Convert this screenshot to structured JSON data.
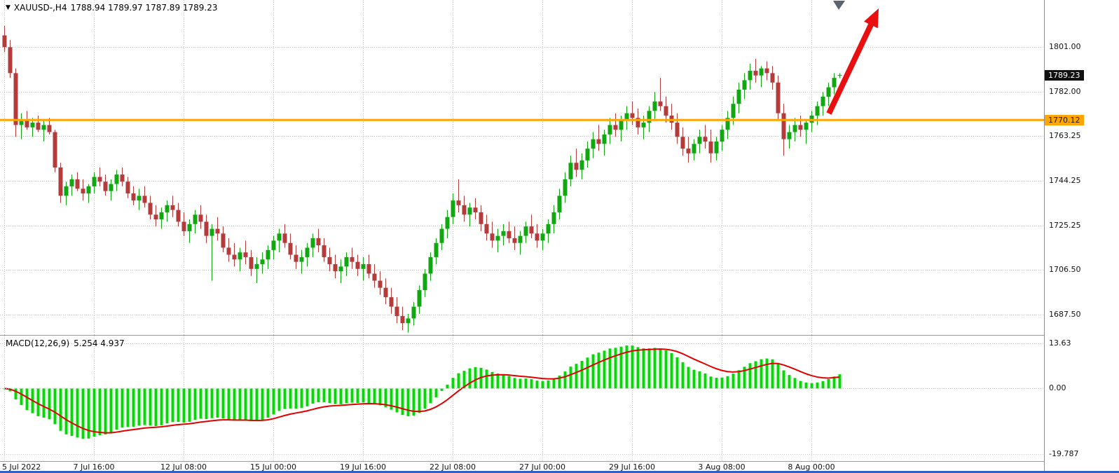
{
  "header": {
    "symbol_period": "XAUUSD-,H4",
    "ohlc": "1788.94 1789.97 1787.89 1789.23"
  },
  "macd_header": {
    "name": "MACD(12,26,9)",
    "values": "5.254 4.937"
  },
  "colors": {
    "background": "#ffffff",
    "grid": "#c6c6c6",
    "candle_up": "#12a712",
    "candle_down": "#b23b3b",
    "macd_hist": "#00dc00",
    "macd_signal": "#e00000",
    "hline": "#FFA500",
    "last_price_bg": "#111111",
    "arrow": "#e81010",
    "bottom_edge": "#2e62c8"
  },
  "chart_data": [
    {
      "type": "candlestick",
      "title": "XAUUSD- H4",
      "ylim": [
        1679,
        1821
      ],
      "y_ticks": [
        {
          "value": 1801.0,
          "label": "1801.00"
        },
        {
          "value": 1782.0,
          "label": "1782.00"
        },
        {
          "value": 1763.25,
          "label": "1763.25"
        },
        {
          "value": 1744.25,
          "label": "1744.25"
        },
        {
          "value": 1725.25,
          "label": "1725.25"
        },
        {
          "value": 1706.5,
          "label": "1706.50"
        },
        {
          "value": 1687.5,
          "label": "1687.50"
        }
      ],
      "last_price": 1789.23,
      "last_price_label": "1789.23",
      "hline": {
        "value": 1770.12,
        "label": "1770.12",
        "color": "#FFA500"
      },
      "x_labels": [
        "5 Jul 2022",
        "7 Jul 16:00",
        "12 Jul 08:00",
        "15 Jul 00:00",
        "19 Jul 16:00",
        "22 Jul 08:00",
        "27 Jul 00:00",
        "29 Jul 16:00",
        "3 Aug 08:00",
        "8 Aug 00:00"
      ],
      "x_label_indices": [
        0,
        16,
        32,
        48,
        64,
        80,
        96,
        112,
        128,
        144
      ],
      "candles": [
        [
          1806,
          1810,
          1799,
          1801
        ],
        [
          1801,
          1804,
          1788,
          1790
        ],
        [
          1790,
          1792,
          1763,
          1768
        ],
        [
          1768,
          1773,
          1762,
          1770
        ],
        [
          1770,
          1774,
          1766,
          1767
        ],
        [
          1767,
          1771,
          1763,
          1769
        ],
        [
          1769,
          1772,
          1765,
          1766
        ],
        [
          1766,
          1770,
          1761,
          1768
        ],
        [
          1768,
          1771,
          1764,
          1765
        ],
        [
          1765,
          1766,
          1748,
          1750
        ],
        [
          1750,
          1752,
          1735,
          1738
        ],
        [
          1738,
          1744,
          1734,
          1742
        ],
        [
          1742,
          1747,
          1738,
          1745
        ],
        [
          1745,
          1748,
          1740,
          1741
        ],
        [
          1741,
          1745,
          1736,
          1739
        ],
        [
          1739,
          1743,
          1735,
          1742
        ],
        [
          1742,
          1748,
          1739,
          1746
        ],
        [
          1746,
          1750,
          1742,
          1744
        ],
        [
          1744,
          1747,
          1738,
          1740
        ],
        [
          1740,
          1745,
          1736,
          1743
        ],
        [
          1743,
          1749,
          1740,
          1747
        ],
        [
          1747,
          1750,
          1742,
          1744
        ],
        [
          1744,
          1746,
          1737,
          1739
        ],
        [
          1739,
          1742,
          1734,
          1736
        ],
        [
          1736,
          1741,
          1732,
          1738
        ],
        [
          1738,
          1742,
          1733,
          1735
        ],
        [
          1735,
          1738,
          1728,
          1730
        ],
        [
          1730,
          1734,
          1725,
          1728
        ],
        [
          1728,
          1733,
          1724,
          1731
        ],
        [
          1731,
          1736,
          1727,
          1734
        ],
        [
          1734,
          1738,
          1729,
          1732
        ],
        [
          1732,
          1735,
          1725,
          1727
        ],
        [
          1727,
          1731,
          1721,
          1723
        ],
        [
          1723,
          1728,
          1718,
          1726
        ],
        [
          1726,
          1732,
          1722,
          1730
        ],
        [
          1730,
          1734,
          1724,
          1727
        ],
        [
          1727,
          1730,
          1718,
          1721
        ],
        [
          1721,
          1726,
          1702,
          1724
        ],
        [
          1724,
          1729,
          1719,
          1722
        ],
        [
          1722,
          1725,
          1714,
          1716
        ],
        [
          1716,
          1720,
          1710,
          1713
        ],
        [
          1713,
          1718,
          1708,
          1711
        ],
        [
          1711,
          1716,
          1706,
          1714
        ],
        [
          1714,
          1719,
          1709,
          1712
        ],
        [
          1712,
          1715,
          1704,
          1707
        ],
        [
          1707,
          1712,
          1701,
          1709
        ],
        [
          1709,
          1714,
          1705,
          1711
        ],
        [
          1711,
          1717,
          1707,
          1715
        ],
        [
          1715,
          1721,
          1711,
          1719
        ],
        [
          1719,
          1724,
          1714,
          1722
        ],
        [
          1722,
          1726,
          1716,
          1718
        ],
        [
          1718,
          1722,
          1711,
          1713
        ],
        [
          1713,
          1717,
          1707,
          1710
        ],
        [
          1710,
          1715,
          1705,
          1712
        ],
        [
          1712,
          1718,
          1708,
          1716
        ],
        [
          1716,
          1722,
          1712,
          1720
        ],
        [
          1720,
          1724,
          1714,
          1717
        ],
        [
          1717,
          1720,
          1710,
          1712
        ],
        [
          1712,
          1716,
          1706,
          1709
        ],
        [
          1709,
          1713,
          1703,
          1706
        ],
        [
          1706,
          1711,
          1701,
          1708
        ],
        [
          1708,
          1714,
          1704,
          1712
        ],
        [
          1712,
          1716,
          1707,
          1710
        ],
        [
          1710,
          1713,
          1704,
          1707
        ],
        [
          1707,
          1712,
          1702,
          1709
        ],
        [
          1709,
          1713,
          1703,
          1705
        ],
        [
          1705,
          1709,
          1699,
          1702
        ],
        [
          1702,
          1706,
          1696,
          1699
        ],
        [
          1699,
          1703,
          1692,
          1695
        ],
        [
          1695,
          1699,
          1688,
          1691
        ],
        [
          1691,
          1695,
          1684,
          1687
        ],
        [
          1687,
          1691,
          1681,
          1684
        ],
        [
          1684,
          1688,
          1680,
          1686
        ],
        [
          1686,
          1693,
          1683,
          1691
        ],
        [
          1691,
          1700,
          1688,
          1698
        ],
        [
          1698,
          1707,
          1695,
          1705
        ],
        [
          1705,
          1714,
          1702,
          1712
        ],
        [
          1712,
          1720,
          1709,
          1718
        ],
        [
          1718,
          1726,
          1715,
          1724
        ],
        [
          1724,
          1732,
          1720,
          1729
        ],
        [
          1729,
          1739,
          1726,
          1736
        ],
        [
          1736,
          1745,
          1731,
          1734
        ],
        [
          1734,
          1738,
          1727,
          1730
        ],
        [
          1730,
          1735,
          1725,
          1733
        ],
        [
          1733,
          1737,
          1728,
          1731
        ],
        [
          1731,
          1734,
          1723,
          1726
        ],
        [
          1726,
          1730,
          1719,
          1722
        ],
        [
          1722,
          1727,
          1716,
          1719
        ],
        [
          1719,
          1724,
          1714,
          1721
        ],
        [
          1721,
          1726,
          1717,
          1723
        ],
        [
          1723,
          1727,
          1718,
          1720
        ],
        [
          1720,
          1725,
          1715,
          1718
        ],
        [
          1718,
          1723,
          1713,
          1721
        ],
        [
          1721,
          1727,
          1718,
          1725
        ],
        [
          1725,
          1730,
          1720,
          1722
        ],
        [
          1722,
          1726,
          1716,
          1719
        ],
        [
          1719,
          1724,
          1715,
          1722
        ],
        [
          1722,
          1728,
          1718,
          1726
        ],
        [
          1726,
          1734,
          1722,
          1731
        ],
        [
          1731,
          1741,
          1728,
          1738
        ],
        [
          1738,
          1748,
          1735,
          1745
        ],
        [
          1745,
          1755,
          1742,
          1752
        ],
        [
          1752,
          1758,
          1746,
          1749
        ],
        [
          1749,
          1756,
          1745,
          1753
        ],
        [
          1753,
          1761,
          1750,
          1758
        ],
        [
          1758,
          1765,
          1754,
          1762
        ],
        [
          1762,
          1768,
          1757,
          1760
        ],
        [
          1760,
          1766,
          1755,
          1764
        ],
        [
          1764,
          1771,
          1760,
          1768
        ],
        [
          1768,
          1773,
          1763,
          1766
        ],
        [
          1766,
          1772,
          1761,
          1770
        ],
        [
          1770,
          1776,
          1766,
          1773
        ],
        [
          1773,
          1778,
          1768,
          1771
        ],
        [
          1771,
          1775,
          1764,
          1767
        ],
        [
          1767,
          1772,
          1762,
          1769
        ],
        [
          1769,
          1776,
          1765,
          1774
        ],
        [
          1774,
          1782,
          1770,
          1778
        ],
        [
          1778,
          1788,
          1774,
          1776
        ],
        [
          1776,
          1780,
          1769,
          1772
        ],
        [
          1772,
          1777,
          1766,
          1769
        ],
        [
          1769,
          1773,
          1760,
          1763
        ],
        [
          1763,
          1767,
          1755,
          1758
        ],
        [
          1758,
          1763,
          1752,
          1756
        ],
        [
          1756,
          1762,
          1753,
          1760
        ],
        [
          1760,
          1766,
          1756,
          1763
        ],
        [
          1763,
          1768,
          1758,
          1761
        ],
        [
          1761,
          1766,
          1752,
          1756
        ],
        [
          1756,
          1763,
          1753,
          1761
        ],
        [
          1761,
          1768,
          1757,
          1766
        ],
        [
          1766,
          1774,
          1762,
          1771
        ],
        [
          1771,
          1780,
          1768,
          1777
        ],
        [
          1777,
          1786,
          1773,
          1783
        ],
        [
          1783,
          1790,
          1779,
          1787
        ],
        [
          1787,
          1794,
          1783,
          1791
        ],
        [
          1791,
          1796,
          1786,
          1789
        ],
        [
          1789,
          1793,
          1784,
          1792
        ],
        [
          1792,
          1795,
          1787,
          1790
        ],
        [
          1790,
          1793,
          1783,
          1786
        ],
        [
          1786,
          1789,
          1770,
          1773
        ],
        [
          1773,
          1777,
          1755,
          1762
        ],
        [
          1762,
          1768,
          1758,
          1765
        ],
        [
          1765,
          1771,
          1761,
          1768
        ],
        [
          1768,
          1772,
          1763,
          1766
        ],
        [
          1766,
          1770,
          1760,
          1769
        ],
        [
          1769,
          1774,
          1765,
          1772
        ],
        [
          1772,
          1778,
          1768,
          1776
        ],
        [
          1776,
          1782,
          1772,
          1780
        ],
        [
          1780,
          1786,
          1776,
          1784
        ],
        [
          1784,
          1790,
          1781,
          1788
        ],
        [
          1788.94,
          1789.97,
          1787.89,
          1789.23
        ]
      ]
    },
    {
      "type": "macd",
      "label": "MACD(12,26,9)",
      "params": [
        12,
        26,
        9
      ],
      "last_macd": 5.254,
      "last_signal": 4.937,
      "ylim": [
        -22,
        16
      ],
      "y_ticks": [
        {
          "value": 13.63,
          "label": "13.63"
        },
        {
          "value": 0,
          "label": "0.00"
        },
        {
          "value": -19.787,
          "label": "-19.787"
        }
      ]
    }
  ],
  "annotations": [
    {
      "type": "trend-arrow",
      "color": "#e81010",
      "tail": [
        1183,
        162
      ],
      "head": [
        1254,
        12
      ],
      "shaft_width": 8
    },
    {
      "type": "cursor",
      "color": "#5a6470",
      "points": [
        [
          1189,
          1
        ],
        [
          1206,
          1
        ],
        [
          1197,
          14
        ]
      ]
    }
  ]
}
